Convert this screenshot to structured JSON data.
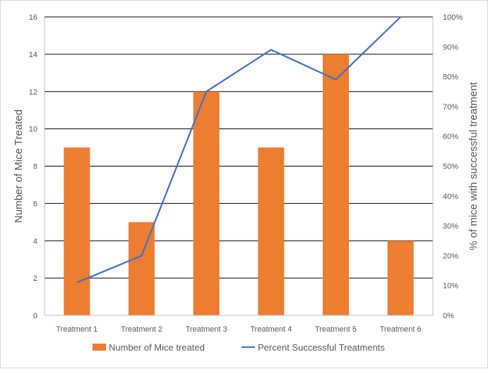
{
  "chart_data": {
    "type": "bar+line",
    "categories": [
      "Treatment 1",
      "Treatment 2",
      "Treatment 3",
      "Treatment 4",
      "Treatment 5",
      "Treatment 6"
    ],
    "series": [
      {
        "name": "Number of Mice treated",
        "type": "bar",
        "axis": "left",
        "values": [
          9,
          5,
          12,
          9,
          14,
          4
        ],
        "color": "#ED7D31"
      },
      {
        "name": "Percent Successful Treatments",
        "type": "line",
        "axis": "right",
        "values": [
          11,
          20,
          75,
          89,
          79,
          100
        ],
        "color": "#4472C4"
      }
    ],
    "ylabel": "Number of Mice Treated",
    "y2label": "% of mice with successful treatment",
    "ylim": [
      0,
      16
    ],
    "y2lim": [
      0,
      100
    ],
    "yticks": [
      "0",
      "2",
      "4",
      "6",
      "8",
      "10",
      "12",
      "14",
      "16"
    ],
    "y2ticks": [
      "0%",
      "10%",
      "20%",
      "30%",
      "40%",
      "50%",
      "60%",
      "70%",
      "80%",
      "90%",
      "100%"
    ],
    "grid": true,
    "legend_position": "bottom",
    "colors": {
      "gridline": "#000000",
      "axis": "#bfbfbf",
      "text": "#595959"
    }
  }
}
